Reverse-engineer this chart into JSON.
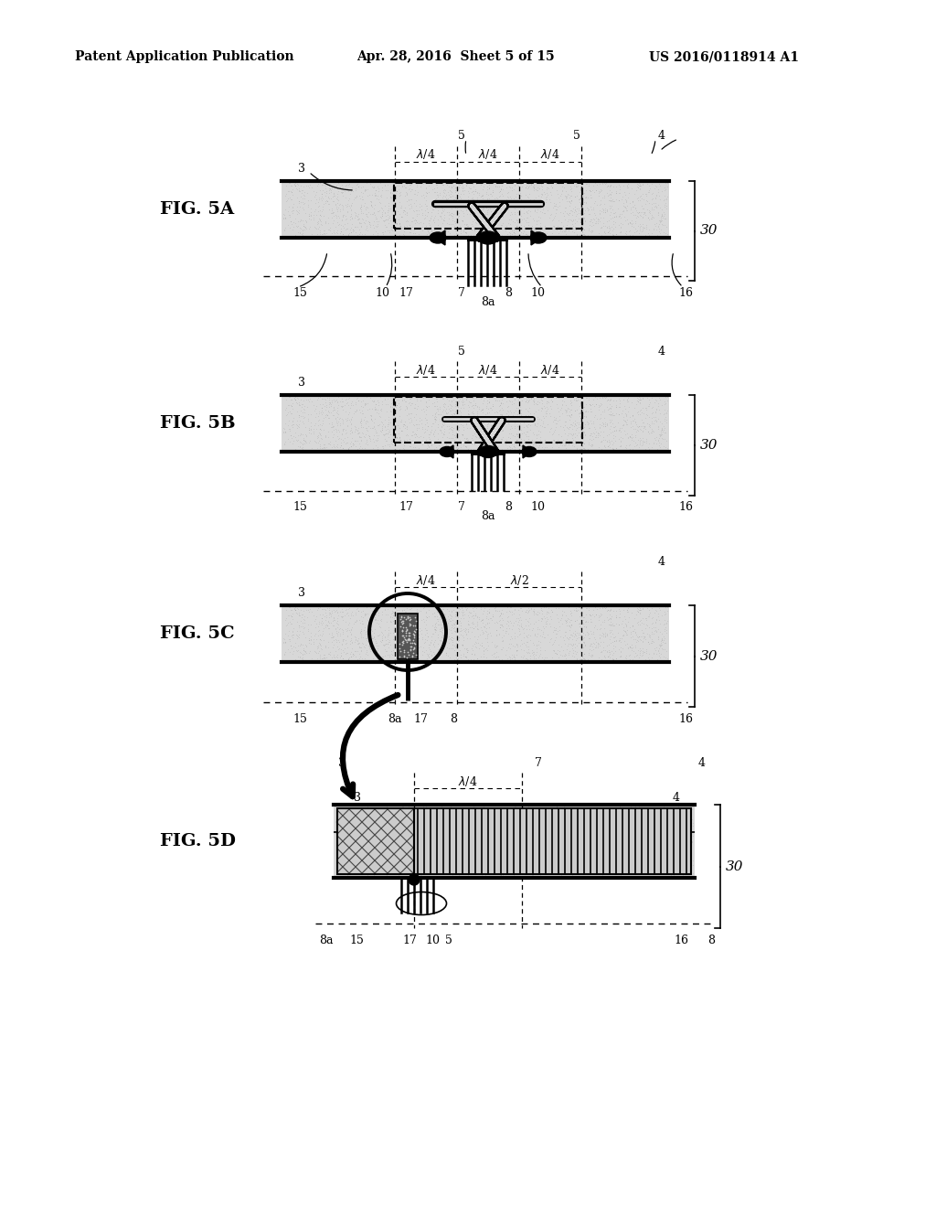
{
  "background_color": "#ffffff",
  "header_left": "Patent Application Publication",
  "header_center": "Apr. 28, 2016  Sheet 5 of 15",
  "header_right": "US 2016/0118914 A1",
  "stator_fill": "#d8d8d8",
  "stator_hatch": "#b0b0b0"
}
